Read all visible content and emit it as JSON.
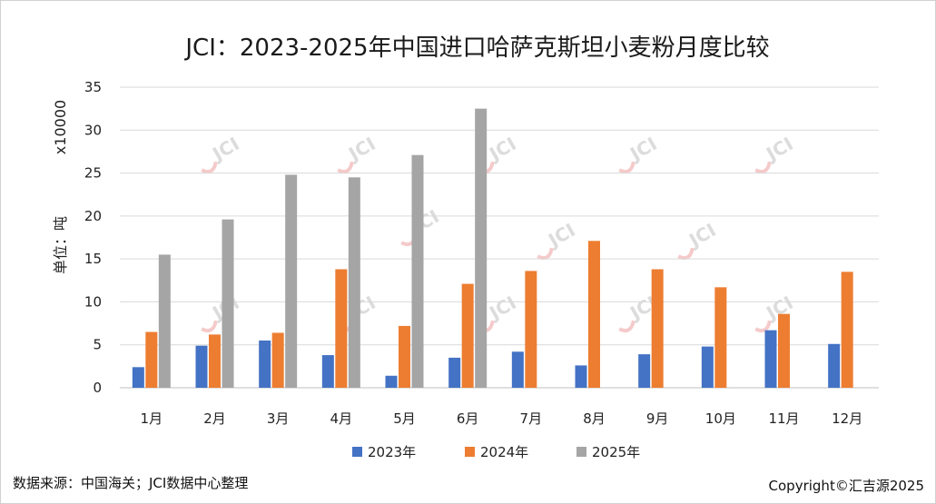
{
  "chart_data": {
    "type": "bar",
    "title": "JCI：2023-2025年中国进口哈萨克斯坦小麦粉月度比较",
    "ylabel": "单位：吨",
    "yunit": "x10000",
    "ylim": [
      0,
      35
    ],
    "yticks": [
      0,
      5,
      10,
      15,
      20,
      25,
      30,
      35
    ],
    "categories": [
      "1月",
      "2月",
      "3月",
      "4月",
      "5月",
      "6月",
      "7月",
      "8月",
      "9月",
      "10月",
      "11月",
      "12月"
    ],
    "series": [
      {
        "name": "2023年",
        "color": "#4472C4",
        "values": [
          2.4,
          4.9,
          5.5,
          3.8,
          1.4,
          3.5,
          4.2,
          2.6,
          3.9,
          4.8,
          6.7,
          5.1
        ]
      },
      {
        "name": "2024年",
        "color": "#ED7D31",
        "values": [
          6.5,
          6.2,
          6.4,
          13.8,
          7.2,
          12.1,
          13.6,
          17.1,
          13.8,
          11.7,
          8.6,
          13.5
        ]
      },
      {
        "name": "2025年",
        "color": "#A5A5A5",
        "values": [
          15.5,
          19.6,
          24.8,
          24.5,
          27.1,
          32.5,
          null,
          null,
          null,
          null,
          null,
          null
        ]
      }
    ],
    "legend_position": "bottom",
    "grid": true
  },
  "footer": {
    "source": "数据来源：中国海关；JCI数据中心整理",
    "copyright": "Copyright©汇吉源2025"
  },
  "watermark": "JCI"
}
